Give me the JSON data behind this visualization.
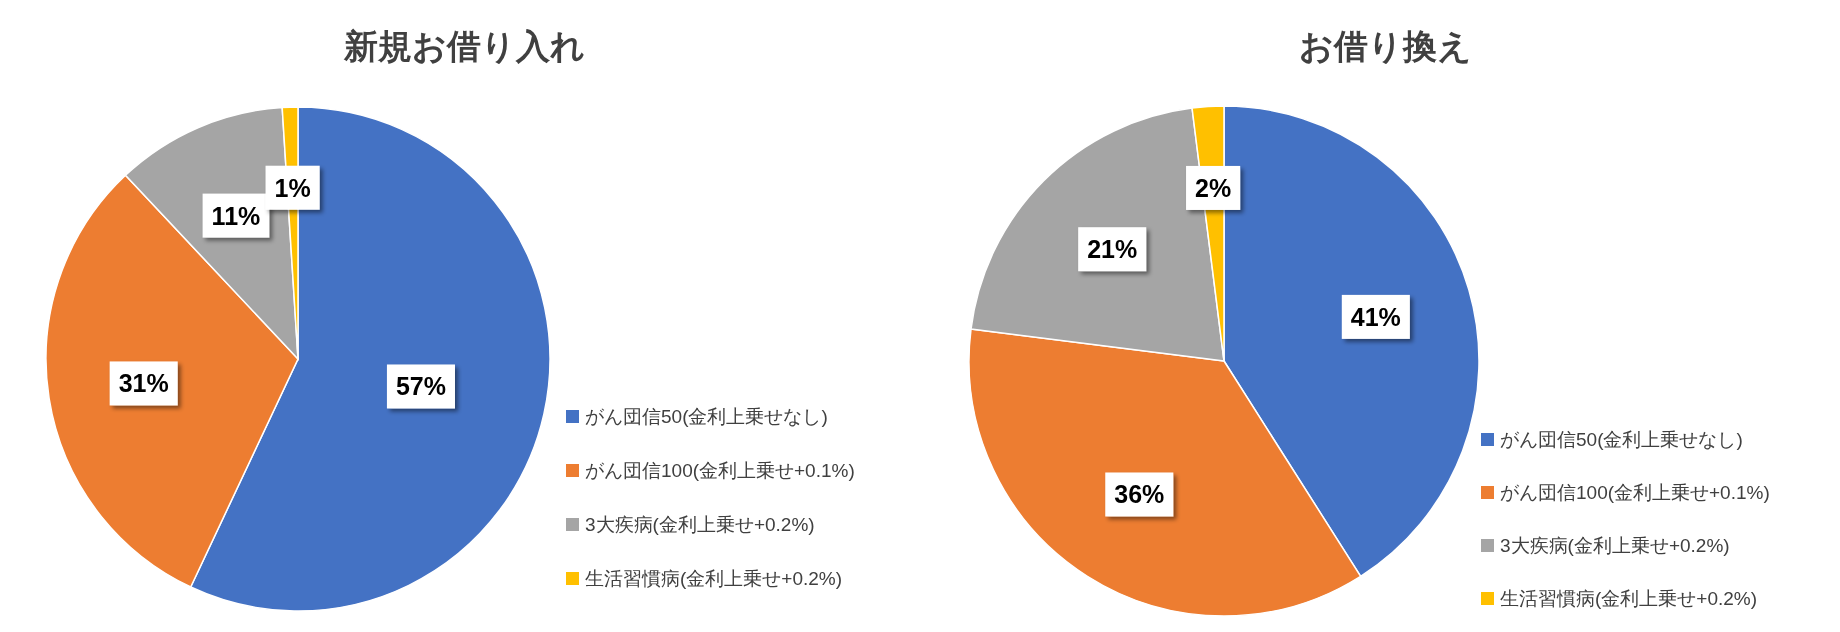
{
  "chart_data": [
    {
      "type": "pie",
      "title": "新規お借り入れ",
      "categories": [
        "がん団信50(金利上乗せなし)",
        "がん団信100(金利上乗せ+0.1%)",
        "3大疾病(金利上乗せ+0.2%)",
        "生活習慣病(金利上乗せ+0.2%)"
      ],
      "values": [
        57,
        31,
        11,
        1
      ],
      "value_labels": [
        "57%",
        "31%",
        "11%",
        "1%"
      ],
      "colors": [
        "#4472c4",
        "#ed7d31",
        "#a5a5a5",
        "#ffc000"
      ],
      "legend": "right"
    },
    {
      "type": "pie",
      "title": "お借り換え",
      "categories": [
        "がん団信50(金利上乗せなし)",
        "がん団信100(金利上乗せ+0.1%)",
        "3大疾病(金利上乗せ+0.2%)",
        "生活習慣病(金利上乗せ+0.2%)"
      ],
      "values": [
        41,
        36,
        21,
        2
      ],
      "value_labels": [
        "41%",
        "36%",
        "21%",
        "2%"
      ],
      "colors": [
        "#4472c4",
        "#ed7d31",
        "#a5a5a5",
        "#ffc000"
      ],
      "legend": "right"
    }
  ]
}
